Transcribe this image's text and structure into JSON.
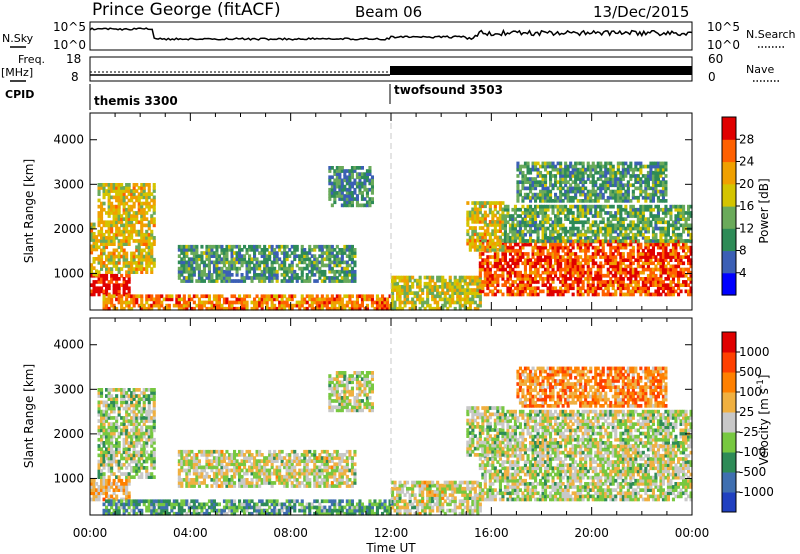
{
  "header": {
    "station": "Prince George (fitACF)",
    "beam": "Beam 06",
    "date": "13/Dec/2015"
  },
  "top_panels": {
    "nsky_label": "N.Sky",
    "nsky_ticks": [
      "10^5",
      "10^0"
    ],
    "nsearch_label": "N.Search",
    "nsearch_ticks": [
      "10^5",
      "10^0"
    ],
    "freq_label": "Freq.",
    "freq_unit": "[MHz]",
    "freq_ticks": [
      "18",
      "8"
    ],
    "nave_label": "Nave",
    "nave_ticks": [
      "60",
      "0"
    ],
    "cpid_label": "CPID",
    "cpid_segments": [
      {
        "name": "themis 3300",
        "start_hour": 0,
        "end_hour": 12
      },
      {
        "name": "twofsound 3503",
        "start_hour": 12,
        "end_hour": 24
      }
    ]
  },
  "chart_data": [
    {
      "type": "heatmap",
      "panel": "power",
      "xlabel": "Time UT",
      "ylabel": "Slant Range [km]",
      "xlim_hours": [
        0,
        24
      ],
      "ylim_km": [
        180,
        4600
      ],
      "x_ticks": [
        "00:00",
        "04:00",
        "08:00",
        "12:00",
        "16:00",
        "20:00",
        "00:00"
      ],
      "y_ticks": [
        1000,
        2000,
        3000,
        4000
      ],
      "colorbar": {
        "label": "Power [dB]",
        "ticks": [
          "4",
          "8",
          "12",
          "16",
          "20",
          "24",
          "28"
        ],
        "colors": [
          "#0000ff",
          "#3b5fb5",
          "#2e8b57",
          "#6aaa5a",
          "#d4c400",
          "#f0a000",
          "#ff6000",
          "#e00000"
        ]
      },
      "echo_regions": [
        {
          "t0": 0.0,
          "t1": 1.6,
          "r0": 500,
          "r1": 950,
          "level": 0.95
        },
        {
          "t0": 0.0,
          "t1": 0.3,
          "r0": 950,
          "r1": 2100,
          "level": 0.6
        },
        {
          "t0": 0.3,
          "t1": 2.6,
          "r0": 1000,
          "r1": 3000,
          "level": 0.6
        },
        {
          "t0": 0.5,
          "t1": 12.0,
          "r0": 180,
          "r1": 500,
          "level": 0.75
        },
        {
          "t0": 3.5,
          "t1": 10.5,
          "r0": 800,
          "r1": 1600,
          "level": 0.35
        },
        {
          "t0": 9.5,
          "t1": 11.2,
          "r0": 2500,
          "r1": 3400,
          "level": 0.3
        },
        {
          "t0": 12.0,
          "t1": 15.5,
          "r0": 180,
          "r1": 900,
          "level": 0.55
        },
        {
          "t0": 15.5,
          "t1": 24.0,
          "r0": 500,
          "r1": 1700,
          "level": 0.85
        },
        {
          "t0": 15.0,
          "t1": 16.5,
          "r0": 1500,
          "r1": 2600,
          "level": 0.6
        },
        {
          "t0": 16.5,
          "t1": 24.0,
          "r0": 1700,
          "r1": 2500,
          "level": 0.4
        },
        {
          "t0": 17.0,
          "t1": 23.0,
          "r0": 2600,
          "r1": 3500,
          "level": 0.35
        }
      ]
    },
    {
      "type": "heatmap",
      "panel": "velocity",
      "xlabel": "Time UT",
      "ylabel": "Slant Range [km]",
      "xlim_hours": [
        0,
        24
      ],
      "ylim_km": [
        180,
        4600
      ],
      "x_ticks": [
        "00:00",
        "04:00",
        "08:00",
        "12:00",
        "16:00",
        "20:00",
        "00:00"
      ],
      "y_ticks": [
        1000,
        2000,
        3000,
        4000
      ],
      "colorbar": {
        "label": "Velocity [m s^-1]",
        "ticks": [
          "1000",
          "500",
          "100",
          "25",
          "-25",
          "-100",
          "-500",
          "-1000"
        ],
        "colors": [
          "#2040c0",
          "#3f6fb0",
          "#2e8b57",
          "#77c840",
          "#c8c8c8",
          "#f0b040",
          "#ff8000",
          "#ff4000",
          "#e00000"
        ]
      },
      "echo_regions": [
        {
          "t0": 0.0,
          "t1": 1.6,
          "r0": 500,
          "r1": 950,
          "level": 0.62
        },
        {
          "t0": 0.3,
          "t1": 2.6,
          "r0": 1000,
          "r1": 3000,
          "level": 0.45
        },
        {
          "t0": 0.5,
          "t1": 12.0,
          "r0": 180,
          "r1": 500,
          "level": 0.3
        },
        {
          "t0": 3.5,
          "t1": 10.5,
          "r0": 800,
          "r1": 1600,
          "level": 0.5
        },
        {
          "t0": 9.5,
          "t1": 11.2,
          "r0": 2500,
          "r1": 3400,
          "level": 0.48
        },
        {
          "t0": 12.0,
          "t1": 15.5,
          "r0": 180,
          "r1": 900,
          "level": 0.5
        },
        {
          "t0": 15.5,
          "t1": 24.0,
          "r0": 500,
          "r1": 1700,
          "level": 0.47
        },
        {
          "t0": 15.0,
          "t1": 16.5,
          "r0": 1500,
          "r1": 2600,
          "level": 0.46
        },
        {
          "t0": 16.5,
          "t1": 24.0,
          "r0": 1700,
          "r1": 2500,
          "level": 0.47
        },
        {
          "t0": 17.0,
          "t1": 23.0,
          "r0": 2600,
          "r1": 3500,
          "level": 0.7
        }
      ]
    }
  ]
}
